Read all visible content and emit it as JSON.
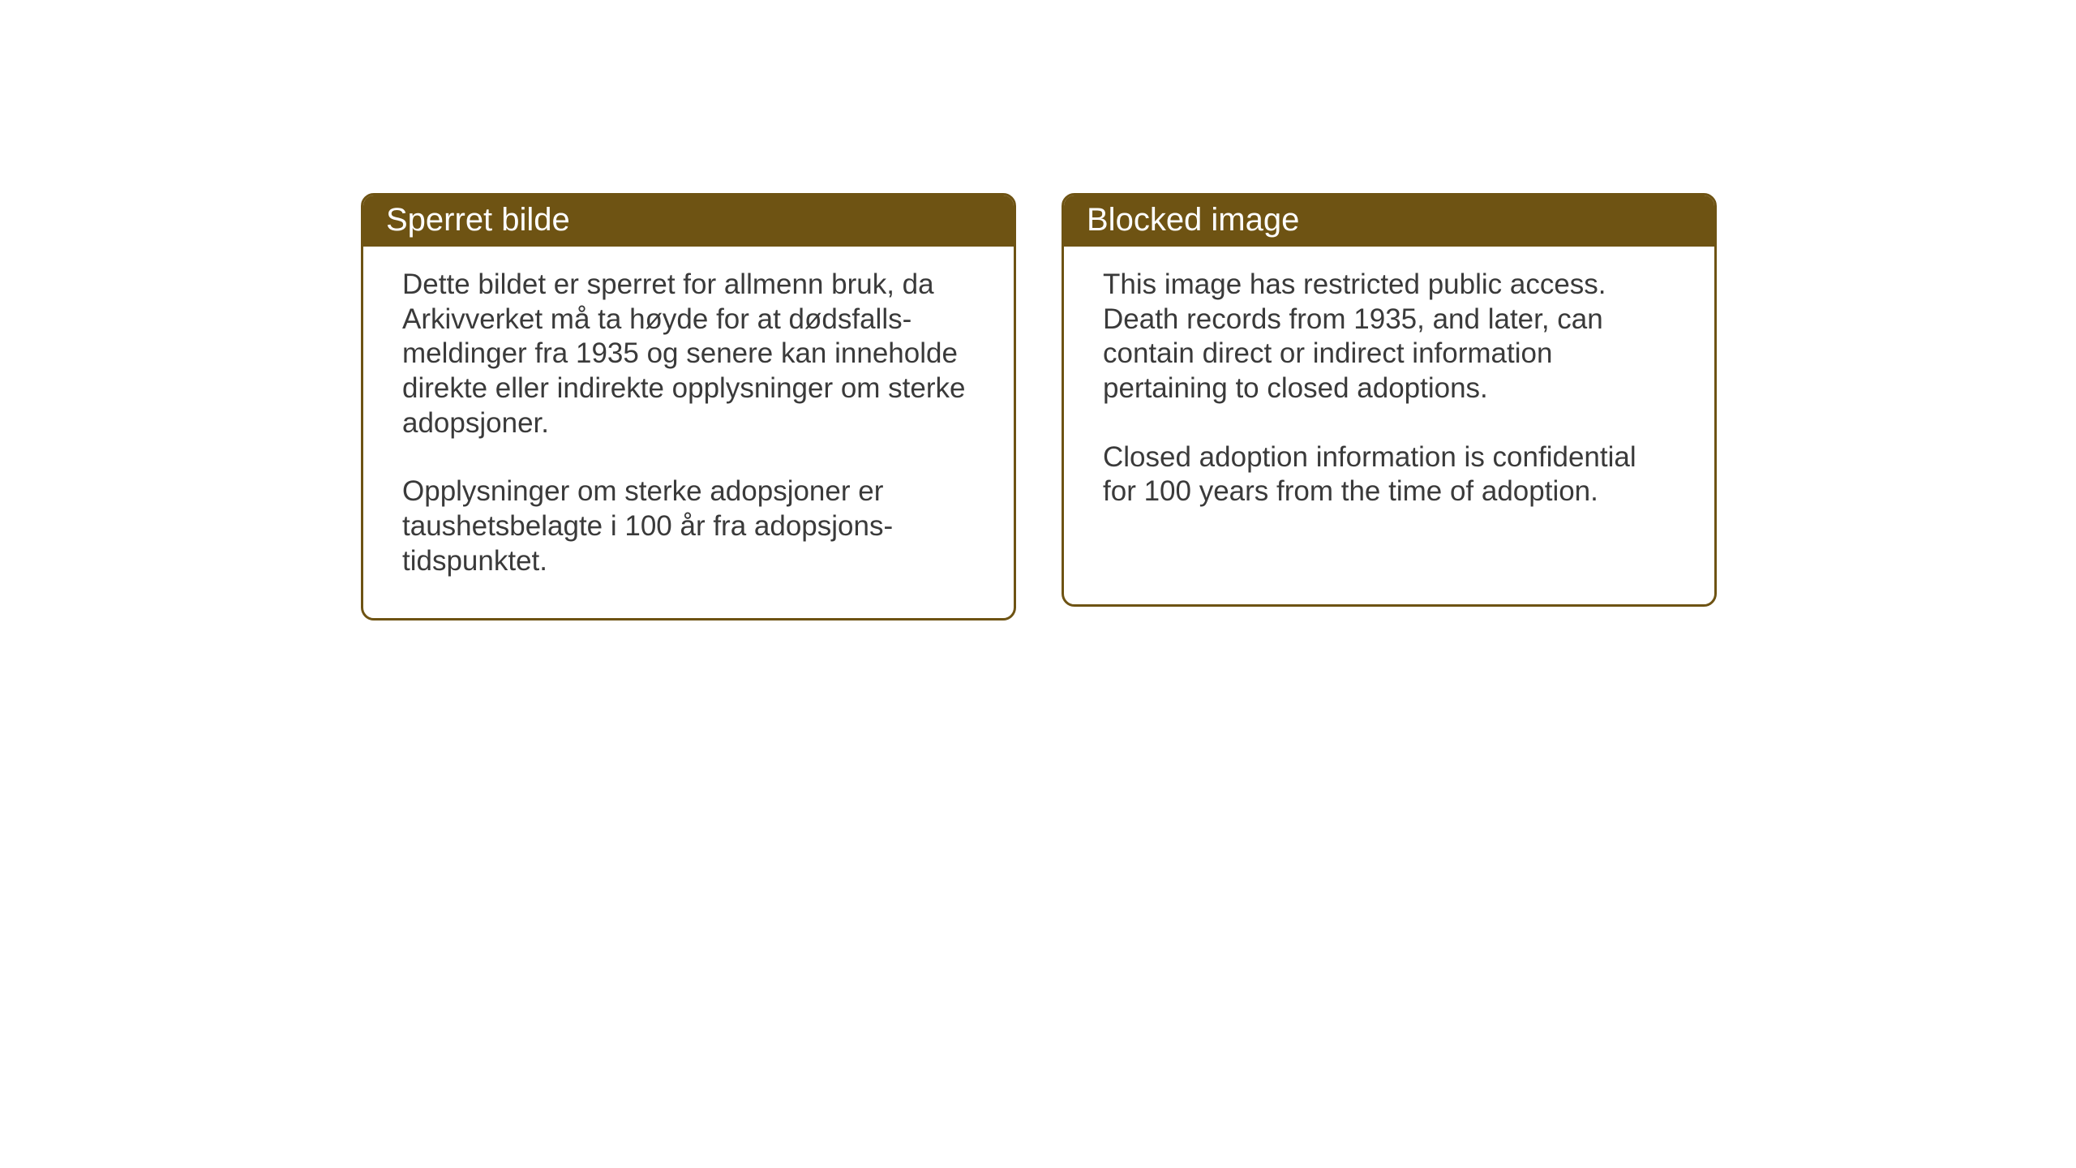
{
  "cards": {
    "norwegian": {
      "title": "Sperret bilde",
      "paragraph1": "Dette bildet er sperret for allmenn bruk, da Arkivverket må ta høyde for at dødsfalls-meldinger fra 1935 og senere kan inneholde direkte eller indirekte opplysninger om sterke adopsjoner.",
      "paragraph2": "Opplysninger om sterke adopsjoner er taushetsbelagte i 100 år fra adopsjons-tidspunktet."
    },
    "english": {
      "title": "Blocked image",
      "paragraph1": "This image has restricted public access. Death records from 1935, and later, can contain direct or indirect information pertaining to closed adoptions.",
      "paragraph2": "Closed adoption information is confidential for 100 years from the time of adoption."
    }
  },
  "styling": {
    "header_bg_color": "#6e5313",
    "header_text_color": "#ffffff",
    "border_color": "#6e5313",
    "body_text_color": "#3a3a3a",
    "background_color": "#ffffff",
    "title_fontsize": 40,
    "body_fontsize": 35,
    "border_radius": 16,
    "border_width": 3
  }
}
